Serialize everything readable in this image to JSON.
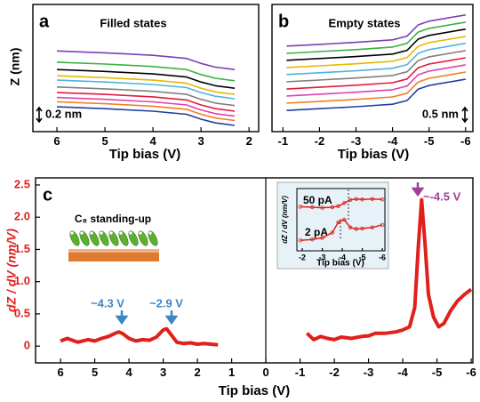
{
  "chart_data": [
    {
      "type": "line",
      "panel": "a",
      "title": "Filled states",
      "ylabel": "Z (nm)",
      "xlabel": "Tip bias (V)",
      "scale_bar": "0.2 nm",
      "x": [
        6,
        5,
        4,
        3.3,
        3,
        2.7,
        2.3
      ],
      "xlim": [
        6.5,
        1.8
      ],
      "xticks": [
        6,
        5,
        4,
        3,
        2
      ],
      "ylim": [
        0,
        2.05
      ],
      "series": [
        {
          "color": "#7b3fb5",
          "values": [
            1.3,
            1.27,
            1.23,
            1.18,
            1.1,
            1.04,
            1.0
          ]
        },
        {
          "color": "#3cb043",
          "values": [
            1.12,
            1.09,
            1.05,
            1.0,
            0.92,
            0.86,
            0.82
          ]
        },
        {
          "color": "#000000",
          "values": [
            1.0,
            0.97,
            0.93,
            0.88,
            0.8,
            0.74,
            0.7
          ]
        },
        {
          "color": "#e8b800",
          "values": [
            0.9,
            0.87,
            0.83,
            0.78,
            0.7,
            0.64,
            0.6
          ]
        },
        {
          "color": "#4fb3e0",
          "values": [
            0.83,
            0.8,
            0.76,
            0.71,
            0.63,
            0.57,
            0.53
          ]
        },
        {
          "color": "#808080",
          "values": [
            0.72,
            0.69,
            0.65,
            0.6,
            0.52,
            0.46,
            0.42
          ]
        },
        {
          "color": "#e6193c",
          "values": [
            0.63,
            0.6,
            0.56,
            0.51,
            0.43,
            0.37,
            0.33
          ]
        },
        {
          "color": "#e040b0",
          "values": [
            0.55,
            0.52,
            0.48,
            0.43,
            0.35,
            0.29,
            0.25
          ]
        },
        {
          "color": "#f08020",
          "values": [
            0.48,
            0.45,
            0.41,
            0.36,
            0.28,
            0.22,
            0.18
          ]
        },
        {
          "color": "#1f3fa0",
          "values": [
            0.4,
            0.37,
            0.33,
            0.28,
            0.2,
            0.14,
            0.1
          ]
        }
      ]
    },
    {
      "type": "line",
      "panel": "b",
      "title": "Empty states",
      "xlabel": "Tip bias (V)",
      "scale_bar": "0.5 nm",
      "x": [
        -1.1,
        -2,
        -3,
        -4,
        -4.4,
        -4.7,
        -5,
        -6
      ],
      "xlim": [
        -0.7,
        -6.2
      ],
      "xticks": [
        -1,
        -2,
        -3,
        -4,
        -5,
        -6
      ],
      "ylim": [
        0,
        5.1
      ],
      "series": [
        {
          "color": "#7b3fb5",
          "values": [
            3.43,
            3.5,
            3.58,
            3.68,
            3.83,
            4.28,
            4.43,
            4.68
          ]
        },
        {
          "color": "#3cb043",
          "values": [
            3.14,
            3.21,
            3.29,
            3.39,
            3.54,
            3.99,
            4.14,
            4.39
          ]
        },
        {
          "color": "#000000",
          "values": [
            2.86,
            2.93,
            3.01,
            3.11,
            3.26,
            3.71,
            3.86,
            4.11
          ]
        },
        {
          "color": "#e8b800",
          "values": [
            2.57,
            2.64,
            2.72,
            2.82,
            2.97,
            3.42,
            3.57,
            3.82
          ]
        },
        {
          "color": "#4fb3e0",
          "values": [
            2.29,
            2.36,
            2.44,
            2.54,
            2.69,
            3.14,
            3.29,
            3.54
          ]
        },
        {
          "color": "#808080",
          "values": [
            2.0,
            2.07,
            2.15,
            2.25,
            2.4,
            2.85,
            3.0,
            3.25
          ]
        },
        {
          "color": "#e6193c",
          "values": [
            1.71,
            1.78,
            1.86,
            1.96,
            2.11,
            2.56,
            2.71,
            2.96
          ]
        },
        {
          "color": "#e040b0",
          "values": [
            1.43,
            1.5,
            1.58,
            1.68,
            1.83,
            2.28,
            2.43,
            2.68
          ]
        },
        {
          "color": "#f08020",
          "values": [
            1.14,
            1.21,
            1.29,
            1.39,
            1.54,
            1.99,
            2.14,
            2.39
          ]
        },
        {
          "color": "#1f3fa0",
          "values": [
            0.85,
            0.92,
            1.0,
            1.1,
            1.25,
            1.7,
            1.85,
            2.1
          ]
        }
      ]
    },
    {
      "type": "line",
      "panel": "c",
      "ylabel": "dZ / dV  (nm/V)",
      "xlabel": "Tip bias (V)",
      "inset_title": "C₈ standing-up",
      "annotations": [
        "~4.3 V",
        "~2.9 V",
        "~-4.5 V"
      ],
      "x": [
        6,
        5.8,
        5.5,
        5.2,
        5,
        4.8,
        4.6,
        4.4,
        4.3,
        4.2,
        4,
        3.8,
        3.6,
        3.4,
        3.2,
        3,
        2.9,
        2.8,
        2.6,
        2.4,
        2.2,
        2,
        1.8,
        1.6,
        1.4,
        0,
        -1.2,
        -1.4,
        -1.6,
        -1.8,
        -2,
        -2.2,
        -2.5,
        -2.8,
        -3,
        -3.2,
        -3.5,
        -3.8,
        -4,
        -4.2,
        -4.35,
        -4.45,
        -4.55,
        -4.65,
        -4.75,
        -4.9,
        -5.05,
        -5.2,
        -5.4,
        -5.6,
        -5.8,
        -6
      ],
      "xlim": [
        6.73,
        -6.05
      ],
      "xticks": [
        6,
        5,
        4,
        3,
        2,
        1,
        0,
        -1,
        -2,
        -3,
        -4,
        -5,
        -6
      ],
      "ylim": [
        -0.26,
        2.61
      ],
      "yticks": [
        0,
        0.5,
        {
          "value": 1,
          "label": "1.0"
        },
        1.5,
        {
          "value": 2,
          "label": "2.0"
        },
        2.5
      ],
      "series": [
        {
          "color": "#e0201b",
          "values": [
            0.08,
            0.12,
            0.06,
            0.1,
            0.08,
            0.12,
            0.15,
            0.2,
            0.22,
            0.2,
            0.12,
            0.08,
            0.1,
            0.09,
            0.14,
            0.25,
            0.27,
            0.2,
            0.06,
            0.04,
            0.05,
            0.03,
            0.04,
            0.03,
            0.02,
            null,
            0.2,
            0.1,
            0.15,
            0.12,
            0.1,
            0.14,
            0.12,
            0.15,
            0.16,
            0.2,
            0.2,
            0.22,
            0.25,
            0.3,
            0.6,
            1.5,
            2.27,
            1.6,
            0.8,
            0.45,
            0.3,
            0.35,
            0.55,
            0.7,
            0.8,
            0.88
          ]
        }
      ]
    },
    {
      "type": "line",
      "ylabel": "dZ / dV (nm/V)",
      "xlabel": "Tip bias (V)",
      "x": [
        -1.9,
        -2.5,
        -3,
        -3.5,
        -3.8,
        -4.1,
        -4.4,
        -4.7,
        -5,
        -5.5,
        -6
      ],
      "xlim": [
        -1.73,
        -6.13
      ],
      "xticks": [
        -2,
        -3,
        -4,
        -5,
        -6
      ],
      "ylim": [
        0,
        1.2
      ],
      "series": [
        {
          "name": "50 pA",
          "color": "#e0201b",
          "values": [
            0.85,
            0.84,
            0.83,
            0.84,
            0.86,
            0.92,
            0.98,
            1.0,
            0.99,
            1.0,
            0.99
          ]
        },
        {
          "name": "2 pA",
          "color": "#e0201b",
          "values": [
            0.2,
            0.22,
            0.25,
            0.35,
            0.55,
            0.6,
            0.45,
            0.42,
            0.43,
            0.45,
            0.5
          ]
        }
      ]
    }
  ]
}
